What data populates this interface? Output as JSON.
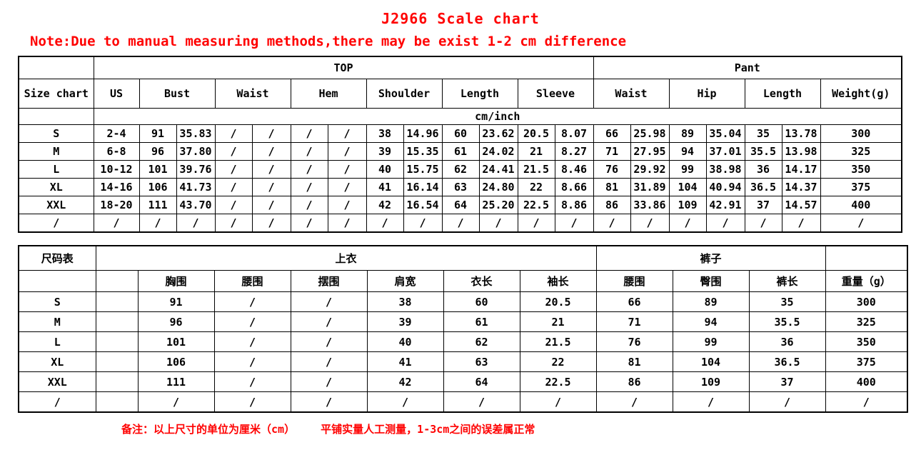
{
  "title": "J2966 Scale chart",
  "note_top": "Note:Due to manual measuring methods,there may be exist 1-2 cm difference",
  "note_bottom": "备注：以上尺寸的单位为厘米（cm）    平铺实量人工测量，1-3cm之间的误差属正常",
  "colors": {
    "accent_red": "#ff0000",
    "border": "#000000"
  },
  "table_en": {
    "corner": "Size chart",
    "groups": {
      "top": "TOP",
      "pant": "Pant"
    },
    "columns": [
      "US",
      "Bust",
      "Waist",
      "Hem",
      "Shoulder",
      "Length",
      "Sleeve",
      "Waist",
      "Hip",
      "Length",
      "Weight(g)"
    ],
    "unit": "cm/inch",
    "rows": [
      {
        "size": "S",
        "cells": [
          "2-4",
          "91",
          "35.83",
          "/",
          "/",
          "/",
          "/",
          "38",
          "14.96",
          "60",
          "23.62",
          "20.5",
          "8.07",
          "66",
          "25.98",
          "89",
          "35.04",
          "35",
          "13.78",
          "300"
        ]
      },
      {
        "size": "M",
        "cells": [
          "6-8",
          "96",
          "37.80",
          "/",
          "/",
          "/",
          "/",
          "39",
          "15.35",
          "61",
          "24.02",
          "21",
          "8.27",
          "71",
          "27.95",
          "94",
          "37.01",
          "35.5",
          "13.98",
          "325"
        ]
      },
      {
        "size": "L",
        "cells": [
          "10-12",
          "101",
          "39.76",
          "/",
          "/",
          "/",
          "/",
          "40",
          "15.75",
          "62",
          "24.41",
          "21.5",
          "8.46",
          "76",
          "29.92",
          "99",
          "38.98",
          "36",
          "14.17",
          "350"
        ]
      },
      {
        "size": "XL",
        "cells": [
          "14-16",
          "106",
          "41.73",
          "/",
          "/",
          "/",
          "/",
          "41",
          "16.14",
          "63",
          "24.80",
          "22",
          "8.66",
          "81",
          "31.89",
          "104",
          "40.94",
          "36.5",
          "14.37",
          "375"
        ]
      },
      {
        "size": "XXL",
        "cells": [
          "18-20",
          "111",
          "43.70",
          "/",
          "/",
          "/",
          "/",
          "42",
          "16.54",
          "64",
          "25.20",
          "22.5",
          "8.86",
          "86",
          "33.86",
          "109",
          "42.91",
          "37",
          "14.57",
          "400"
        ]
      },
      {
        "size": "/",
        "cells": [
          "/",
          "/",
          "/",
          "/",
          "/",
          "/",
          "/",
          "/",
          "/",
          "/",
          "/",
          "/",
          "/",
          "/",
          "/",
          "/",
          "/",
          "/",
          "/",
          "/"
        ]
      }
    ]
  },
  "table_cn": {
    "corner": "尺码表",
    "groups": {
      "top": "上衣",
      "pant": "裤子"
    },
    "columns": [
      "胸围",
      "腰围",
      "摆围",
      "肩宽",
      "衣长",
      "袖长",
      "腰围",
      "臀围",
      "裤长",
      "重量（g）"
    ],
    "rows": [
      {
        "size": "S",
        "cells": [
          "",
          "91",
          "/",
          "/",
          "38",
          "60",
          "20.5",
          "66",
          "89",
          "35",
          "300"
        ]
      },
      {
        "size": "M",
        "cells": [
          "",
          "96",
          "/",
          "/",
          "39",
          "61",
          "21",
          "71",
          "94",
          "35.5",
          "325"
        ]
      },
      {
        "size": "L",
        "cells": [
          "",
          "101",
          "/",
          "/",
          "40",
          "62",
          "21.5",
          "76",
          "99",
          "36",
          "350"
        ]
      },
      {
        "size": "XL",
        "cells": [
          "",
          "106",
          "/",
          "/",
          "41",
          "63",
          "22",
          "81",
          "104",
          "36.5",
          "375"
        ]
      },
      {
        "size": "XXL",
        "cells": [
          "",
          "111",
          "/",
          "/",
          "42",
          "64",
          "22.5",
          "86",
          "109",
          "37",
          "400"
        ]
      },
      {
        "size": "/",
        "cells": [
          "",
          "/",
          "/",
          "/",
          "/",
          "/",
          "/",
          "/",
          "/",
          "/",
          "/"
        ]
      }
    ]
  }
}
